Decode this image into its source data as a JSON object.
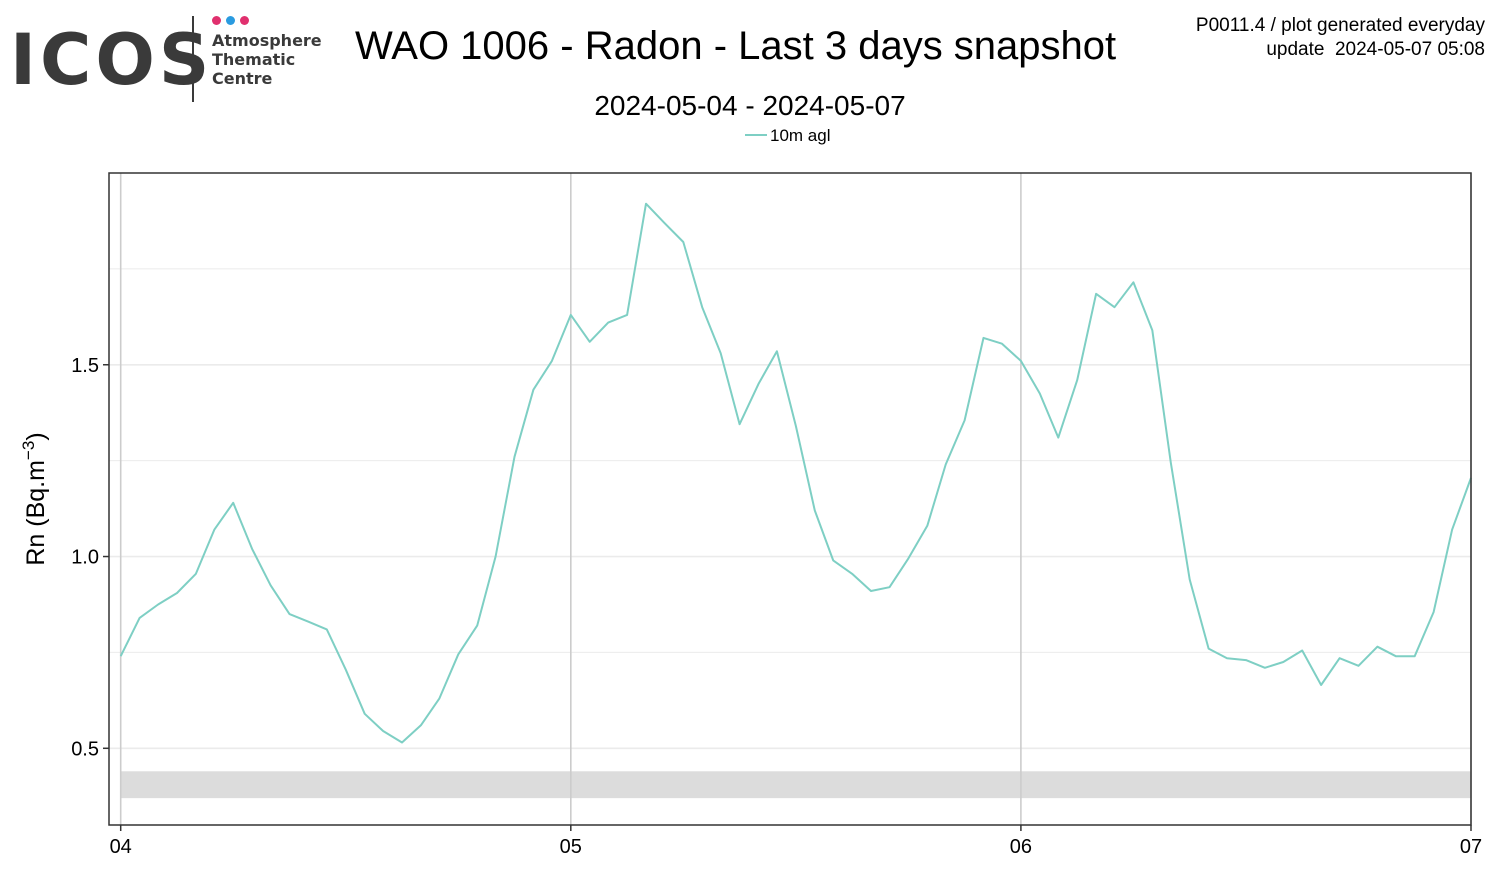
{
  "header": {
    "logo": {
      "wordmark": "ICOS",
      "line1": "Atmosphere",
      "line2": "Thematic",
      "line3": "Centre",
      "dot_colors": [
        "#e0306e",
        "#2a9be0",
        "#e0306e"
      ]
    },
    "title": "WAO 1006 - Radon - Last 3 days snapshot",
    "subtitle": "2024-05-04 - 2024-05-07",
    "meta_line1": "P0011.4 / plot generated everyday",
    "meta_line2": "update  2024-05-07 05:08"
  },
  "colors": {
    "series": "#7ecfc4",
    "grid_major": "#cccccc",
    "grid_minor": "#ebebeb",
    "band": "#dcdcdc",
    "panel_border": "#333333"
  },
  "chart_data": {
    "type": "line",
    "title": "WAO 1006 - Radon - Last 3 days snapshot",
    "subtitle": "2024-05-04 - 2024-05-07",
    "xlabel": "",
    "ylabel": "Rn (Bq.m",
    "ylabel_sup": "−3",
    "ylabel_close": ")",
    "x_unit": "day",
    "xlim": [
      -0.026,
      3.0
    ],
    "ylim": [
      0.3,
      2.0
    ],
    "xticks": [
      0,
      1,
      2,
      3
    ],
    "xtick_labels": [
      "04",
      "05",
      "06",
      "07"
    ],
    "yticks": [
      0.5,
      1.0,
      1.5
    ],
    "ytick_labels": [
      "0.5",
      "1.0",
      "1.5"
    ],
    "grid": true,
    "legend": "top-center",
    "band": {
      "y0": 0.37,
      "y1": 0.44,
      "x0": 0,
      "x1": 3
    },
    "series": [
      {
        "name": "10m agl",
        "x": [
          0,
          0.042,
          0.083,
          0.125,
          0.167,
          0.208,
          0.25,
          0.292,
          0.333,
          0.375,
          0.417,
          0.458,
          0.5,
          0.542,
          0.583,
          0.625,
          0.667,
          0.708,
          0.75,
          0.792,
          0.833,
          0.875,
          0.917,
          0.958,
          1.0,
          1.042,
          1.083,
          1.125,
          1.167,
          1.208,
          1.25,
          1.292,
          1.333,
          1.375,
          1.417,
          1.458,
          1.5,
          1.542,
          1.583,
          1.625,
          1.667,
          1.708,
          1.75,
          1.792,
          1.833,
          1.875,
          1.917,
          1.958,
          2.0,
          2.042,
          2.083,
          2.125,
          2.167,
          2.208,
          2.25,
          2.292,
          2.333,
          2.375,
          2.417,
          2.458,
          2.5,
          2.542,
          2.583,
          2.625,
          2.667,
          2.708,
          2.75,
          2.792,
          2.833,
          2.875,
          2.917,
          2.958,
          3.0
        ],
        "values": [
          0.74,
          0.84,
          0.875,
          0.905,
          0.955,
          1.07,
          1.14,
          1.02,
          0.925,
          0.85,
          0.83,
          0.81,
          0.705,
          0.59,
          0.545,
          0.515,
          0.56,
          0.63,
          0.745,
          0.82,
          1.0,
          1.26,
          1.435,
          1.51,
          1.63,
          1.56,
          1.61,
          1.63,
          1.92,
          1.87,
          1.82,
          1.65,
          1.53,
          1.345,
          1.45,
          1.535,
          1.34,
          1.12,
          0.99,
          0.955,
          0.91,
          0.92,
          0.995,
          1.08,
          1.24,
          1.355,
          1.57,
          1.555,
          1.51,
          1.425,
          1.31,
          1.46,
          1.685,
          1.65,
          1.715,
          1.59,
          1.245,
          0.94,
          0.76,
          0.735,
          0.73,
          0.71,
          0.725,
          0.755,
          0.665,
          0.735,
          0.715,
          0.765,
          0.74,
          0.74,
          0.855,
          1.07,
          1.205
        ]
      }
    ]
  }
}
